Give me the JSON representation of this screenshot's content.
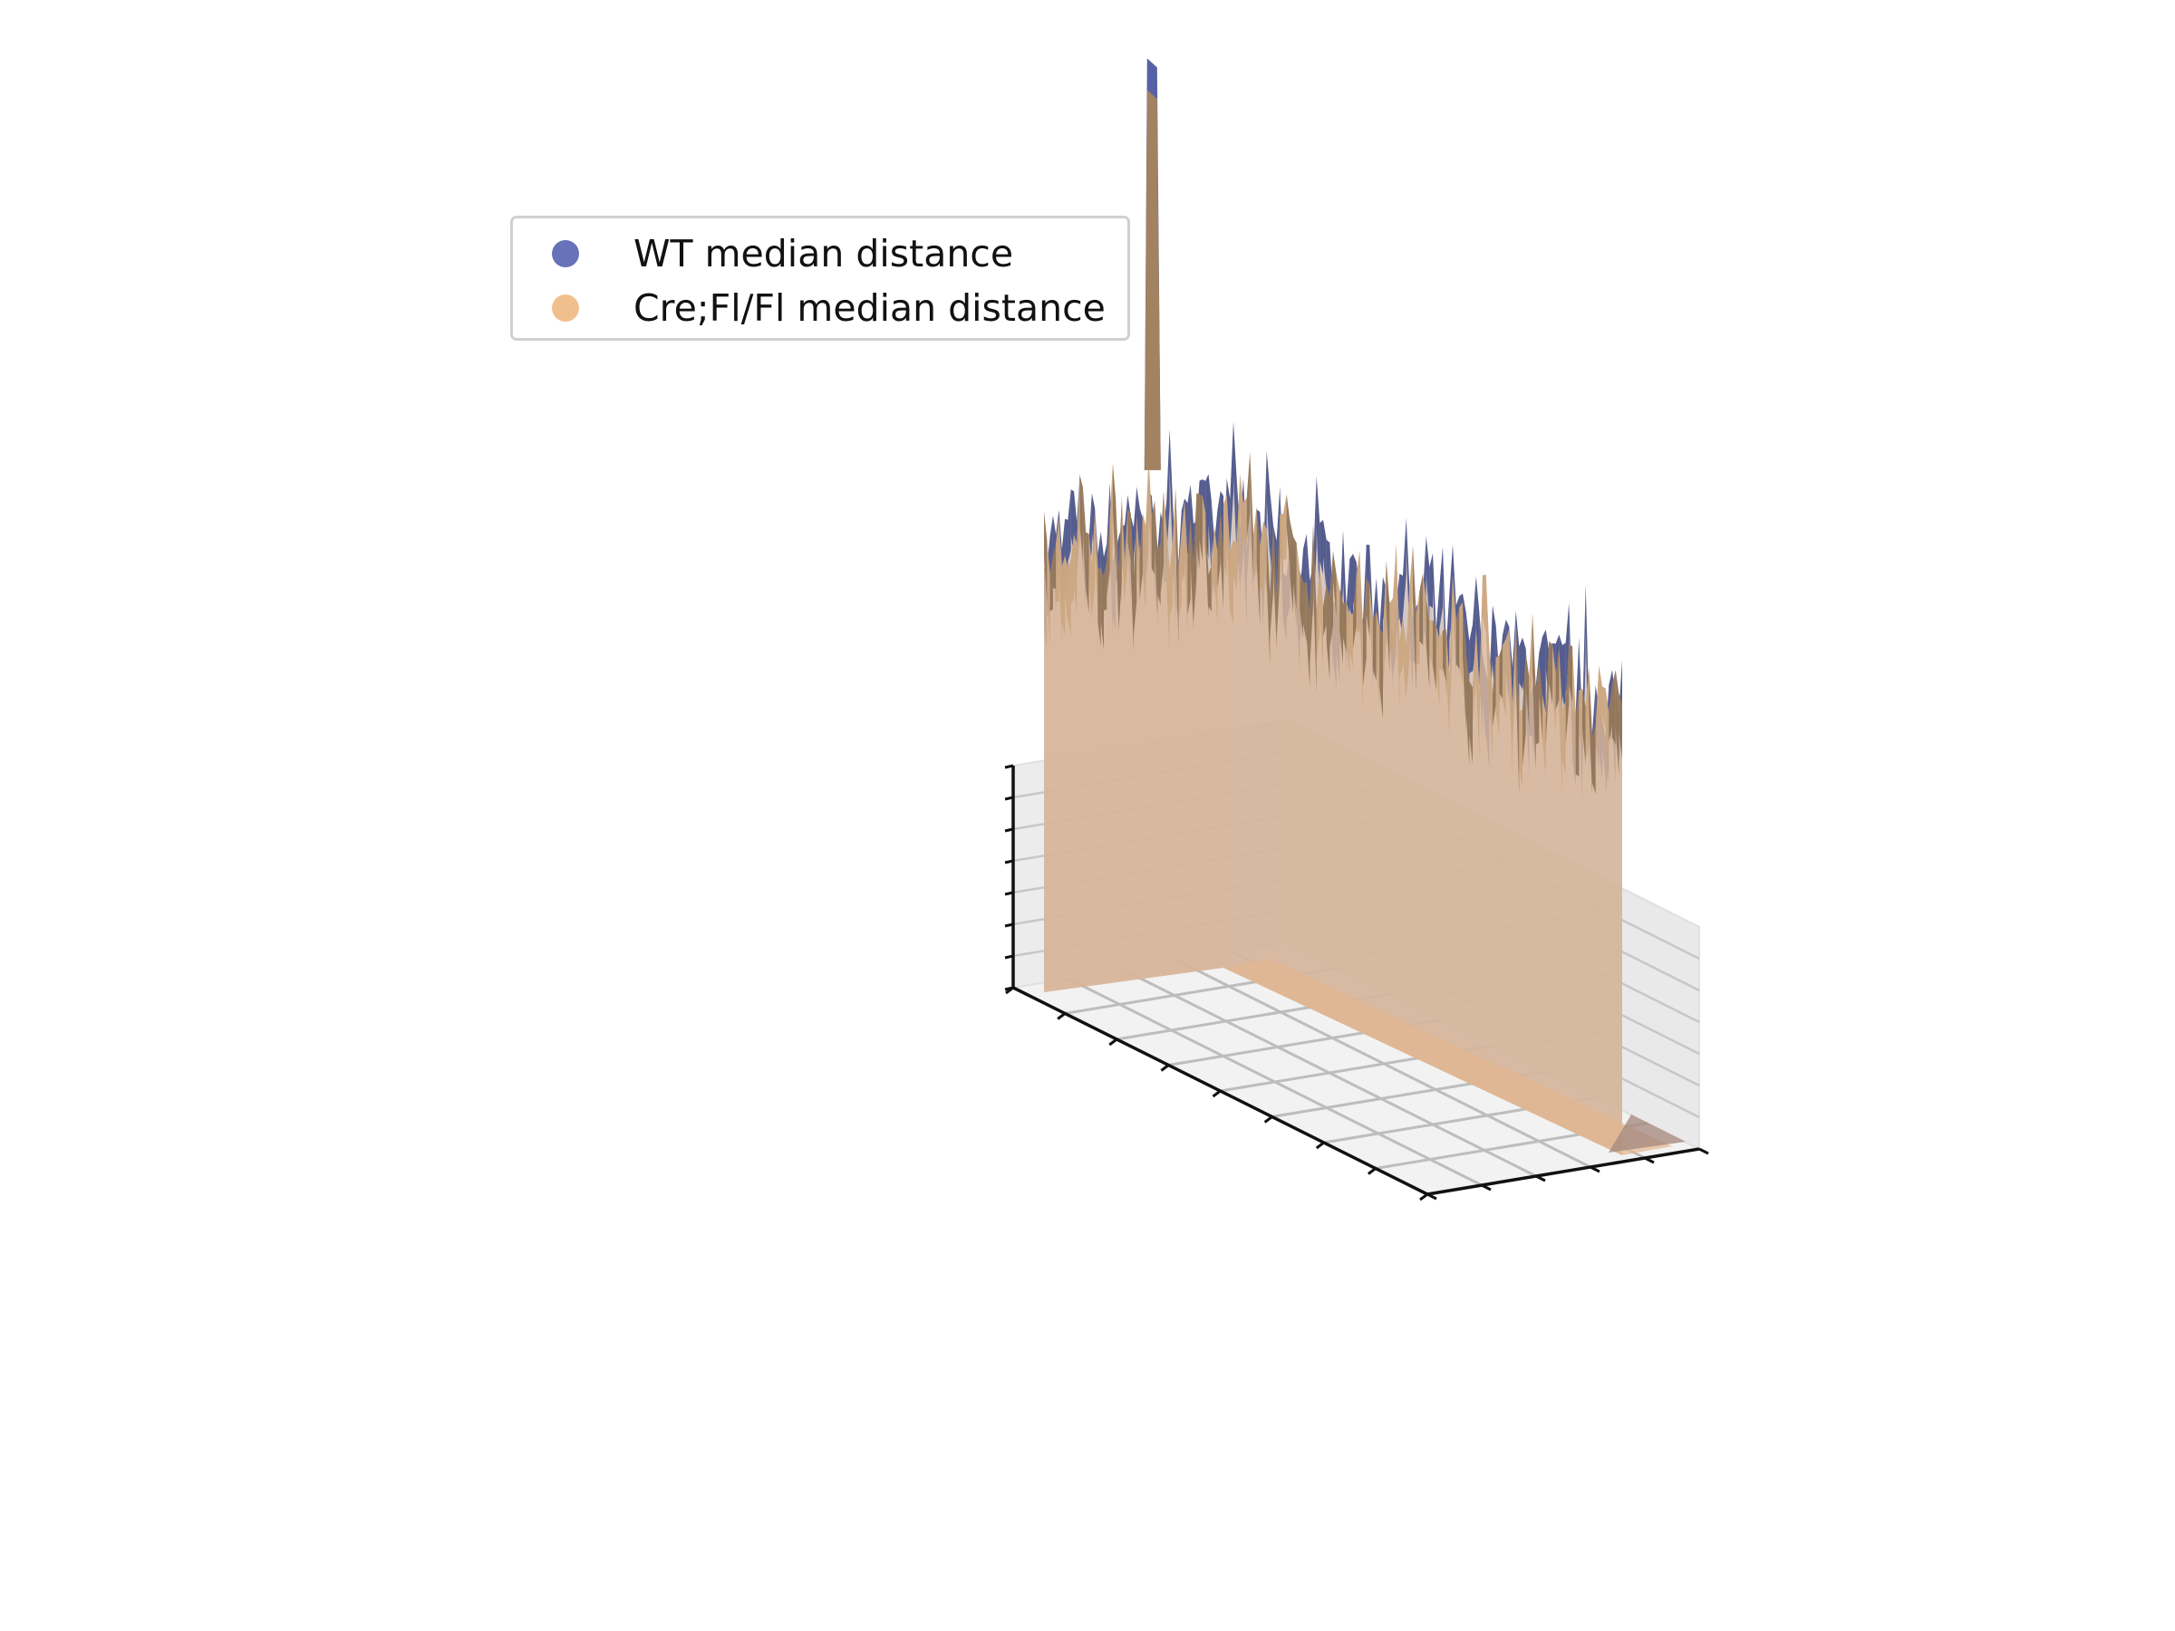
{
  "chart_data": {
    "type": "surface3d",
    "title": "",
    "xlabel": "",
    "ylabel": "",
    "zlabel": "",
    "grid": true,
    "legend_position": "top-left",
    "typical_height": 0.75,
    "spike_height": 1.6,
    "series": [
      {
        "name": "WT median distance",
        "color": "#6872b8",
        "mean": 0.75,
        "spike_at": 0.3,
        "spike_height": 1.62
      },
      {
        "name": "Cre;Fl/Fl median distance",
        "color": "#efc08e",
        "mean": 0.74,
        "spike_at": 0.3,
        "spike_height": 1.58
      }
    ]
  }
}
